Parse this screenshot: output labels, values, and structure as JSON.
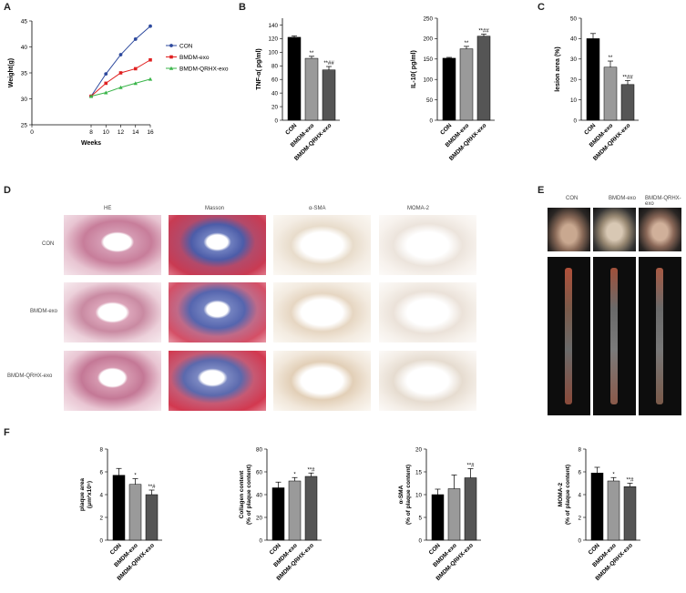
{
  "panel_letters": [
    "A",
    "B",
    "C",
    "D",
    "E",
    "F"
  ],
  "histology": {
    "columns": [
      "HE",
      "Masson",
      "α-SMA",
      "MOMA-2"
    ],
    "rows": [
      "CON",
      "BMDM-exo",
      "BMDM-QRHX-exo"
    ]
  },
  "aorta": {
    "columns": [
      "CON",
      "BMDM-exo",
      "BMDM-QRHX-exo"
    ]
  },
  "colors": {
    "con": "#2e4a9e",
    "bmdm": "#e02020",
    "qrhx": "#3ab54a",
    "bar_con": "#000000",
    "bar_bmdm": "#9a9a9a",
    "bar_qrhx": "#555555"
  },
  "chart_data": [
    {
      "id": "A",
      "type": "line",
      "xlabel": "Weeks",
      "ylabel": "Weight(g)",
      "xlim": [
        0,
        16
      ],
      "ylim": [
        25,
        45
      ],
      "xticks": [
        0,
        8,
        10,
        12,
        14,
        16
      ],
      "yticks": [
        25,
        30,
        35,
        40,
        45
      ],
      "x": [
        8,
        10,
        12,
        14,
        16
      ],
      "series": [
        {
          "name": "CON",
          "values": [
            30.5,
            34.8,
            38.5,
            41.5,
            44
          ]
        },
        {
          "name": "BMDM-exo",
          "values": [
            30.5,
            33,
            35,
            35.8,
            37.5
          ]
        },
        {
          "name": "BMDM-QRHX-exo",
          "values": [
            30.5,
            31.2,
            32.2,
            33,
            33.8
          ]
        }
      ]
    },
    {
      "id": "B1",
      "type": "bar",
      "ylabel": "TNF-α( pg/ml)",
      "categories": [
        "CON",
        "BMDM-exo",
        "BMDM-QRHX-exo"
      ],
      "values": [
        122,
        91,
        74
      ],
      "errors": [
        2,
        3,
        5
      ],
      "sig": [
        "",
        "**",
        "**##"
      ],
      "ylim": [
        0,
        150
      ],
      "yticks": [
        0,
        20,
        40,
        60,
        80,
        100,
        120,
        140
      ]
    },
    {
      "id": "B2",
      "type": "bar",
      "ylabel": "IL-10( pg/ml)",
      "categories": [
        "CON",
        "BMDM-exo",
        "BMDM-QRHX-exo"
      ],
      "values": [
        152,
        175,
        206
      ],
      "errors": [
        2,
        6,
        5
      ],
      "sig": [
        "",
        "**",
        "**##"
      ],
      "ylim": [
        0,
        250
      ],
      "yticks": [
        0,
        50,
        100,
        150,
        200,
        250
      ]
    },
    {
      "id": "C",
      "type": "bar",
      "ylabel": "lesion area (%)",
      "categories": [
        "CON",
        "BMDM-exo",
        "BMDM-QRHX-exo"
      ],
      "values": [
        40,
        26,
        17.5
      ],
      "errors": [
        2.5,
        3,
        2
      ],
      "sig": [
        "",
        "**",
        "**##"
      ],
      "ylim": [
        0,
        50
      ],
      "yticks": [
        0,
        10,
        20,
        30,
        40,
        50
      ]
    },
    {
      "id": "F1",
      "type": "bar",
      "ylabel": "plaque area",
      "ylabel2": "(μm²x10⁵)",
      "categories": [
        "CON",
        "BMDM-exo",
        "BMDM-QRHX-exo"
      ],
      "values": [
        5.7,
        4.9,
        4.0
      ],
      "errors": [
        0.6,
        0.5,
        0.4
      ],
      "sig": [
        "",
        "*",
        "**#"
      ],
      "ylim": [
        0,
        8
      ],
      "yticks": [
        0,
        2,
        4,
        6,
        8
      ]
    },
    {
      "id": "F2",
      "type": "bar",
      "ylabel": "Collagen content",
      "ylabel2": "(% of plaque content)",
      "categories": [
        "CON",
        "BMDM-exo",
        "BMDM-QRHX-exo"
      ],
      "values": [
        46,
        52,
        56
      ],
      "errors": [
        5,
        3,
        3
      ],
      "sig": [
        "",
        "*",
        "**#"
      ],
      "ylim": [
        0,
        80
      ],
      "yticks": [
        0,
        20,
        40,
        60,
        80
      ]
    },
    {
      "id": "F3",
      "type": "bar",
      "ylabel": "α-SMA",
      "ylabel2": "(% of plaque content)",
      "categories": [
        "CON",
        "BMDM-exo",
        "BMDM-QRHX-exo"
      ],
      "values": [
        10,
        11.3,
        13.7
      ],
      "errors": [
        1.2,
        3,
        2
      ],
      "sig": [
        "",
        "",
        "**#"
      ],
      "ylim": [
        0,
        20
      ],
      "yticks": [
        0,
        5,
        10,
        15,
        20
      ]
    },
    {
      "id": "F4",
      "type": "bar",
      "ylabel": "MOMA-2",
      "ylabel2": "(% of plaque content)",
      "categories": [
        "CON",
        "BMDM-exo",
        "BMDM-QRHX-exo"
      ],
      "values": [
        5.9,
        5.2,
        4.7
      ],
      "errors": [
        0.5,
        0.3,
        0.3
      ],
      "sig": [
        "",
        "*",
        "**#"
      ],
      "ylim": [
        0,
        8
      ],
      "yticks": [
        0,
        2,
        4,
        6,
        8
      ]
    }
  ]
}
